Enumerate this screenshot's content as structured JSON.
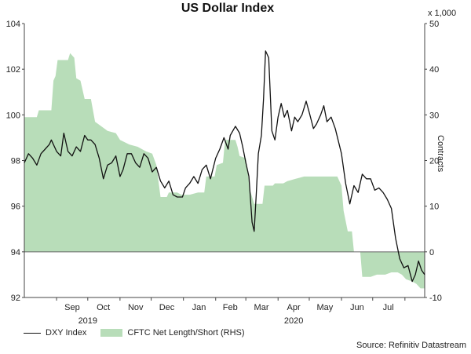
{
  "chart_data": {
    "type": "line",
    "title": "US Dollar Index",
    "left_axis": {
      "range": [
        92,
        104
      ],
      "ticks": [
        92,
        94,
        96,
        98,
        100,
        102,
        104
      ]
    },
    "right_axis": {
      "label": "Contracts",
      "unit": "x 1,000",
      "range": [
        -10,
        50
      ],
      "ticks": [
        -10,
        0,
        10,
        20,
        30,
        40,
        50
      ]
    },
    "x_ticks": [
      "Sep",
      "Oct",
      "Nov",
      "Dec",
      "Jan",
      "Feb",
      "Mar",
      "Apr",
      "May",
      "Jun",
      "Jul"
    ],
    "year_labels": [
      "2019",
      "2020"
    ],
    "series": [
      {
        "name": "DXY Index",
        "kind": "line",
        "color": "#111111",
        "points": [
          [
            "2019-08-01",
            97.9
          ],
          [
            "2019-08-05",
            98.3
          ],
          [
            "2019-08-09",
            98.1
          ],
          [
            "2019-08-13",
            97.8
          ],
          [
            "2019-08-17",
            98.3
          ],
          [
            "2019-08-21",
            98.5
          ],
          [
            "2019-08-25",
            98.7
          ],
          [
            "2019-08-27",
            98.9
          ],
          [
            "2019-09-01",
            98.4
          ],
          [
            "2019-09-05",
            98.2
          ],
          [
            "2019-09-08",
            99.2
          ],
          [
            "2019-09-12",
            98.4
          ],
          [
            "2019-09-16",
            98.2
          ],
          [
            "2019-09-20",
            98.6
          ],
          [
            "2019-09-24",
            98.4
          ],
          [
            "2019-09-28",
            99.1
          ],
          [
            "2019-10-01",
            98.9
          ],
          [
            "2019-10-04",
            98.9
          ],
          [
            "2019-10-08",
            98.7
          ],
          [
            "2019-10-12",
            98.1
          ],
          [
            "2019-10-16",
            97.2
          ],
          [
            "2019-10-20",
            97.8
          ],
          [
            "2019-10-24",
            97.9
          ],
          [
            "2019-10-28",
            98.2
          ],
          [
            "2019-11-01",
            97.3
          ],
          [
            "2019-11-04",
            97.6
          ],
          [
            "2019-11-08",
            98.3
          ],
          [
            "2019-11-12",
            98.3
          ],
          [
            "2019-11-16",
            97.9
          ],
          [
            "2019-11-20",
            97.7
          ],
          [
            "2019-11-24",
            98.3
          ],
          [
            "2019-11-28",
            98.1
          ],
          [
            "2019-12-02",
            97.5
          ],
          [
            "2019-12-06",
            97.7
          ],
          [
            "2019-12-10",
            97.1
          ],
          [
            "2019-12-14",
            96.8
          ],
          [
            "2019-12-18",
            97.1
          ],
          [
            "2019-12-22",
            96.5
          ],
          [
            "2019-12-26",
            96.4
          ],
          [
            "2019-12-31",
            96.4
          ],
          [
            "2020-01-03",
            96.8
          ],
          [
            "2020-01-07",
            97.0
          ],
          [
            "2020-01-11",
            97.3
          ],
          [
            "2020-01-15",
            97.0
          ],
          [
            "2020-01-19",
            97.6
          ],
          [
            "2020-01-23",
            97.8
          ],
          [
            "2020-01-27",
            97.2
          ],
          [
            "2020-02-01",
            98.1
          ],
          [
            "2020-02-05",
            98.5
          ],
          [
            "2020-02-09",
            99.0
          ],
          [
            "2020-02-13",
            98.5
          ],
          [
            "2020-02-15",
            99.1
          ],
          [
            "2020-02-20",
            99.5
          ],
          [
            "2020-02-24",
            99.2
          ],
          [
            "2020-02-27",
            98.6
          ],
          [
            "2020-03-01",
            97.9
          ],
          [
            "2020-03-04",
            97.3
          ],
          [
            "2020-03-07",
            95.3
          ],
          [
            "2020-03-09",
            94.9
          ],
          [
            "2020-03-11",
            96.5
          ],
          [
            "2020-03-13",
            98.3
          ],
          [
            "2020-03-16",
            99.1
          ],
          [
            "2020-03-18",
            100.7
          ],
          [
            "2020-03-20",
            102.8
          ],
          [
            "2020-03-23",
            102.5
          ],
          [
            "2020-03-26",
            99.3
          ],
          [
            "2020-03-29",
            98.9
          ],
          [
            "2020-04-01",
            99.9
          ],
          [
            "2020-04-04",
            100.5
          ],
          [
            "2020-04-07",
            99.9
          ],
          [
            "2020-04-10",
            100.2
          ],
          [
            "2020-04-14",
            99.3
          ],
          [
            "2020-04-17",
            99.9
          ],
          [
            "2020-04-20",
            99.7
          ],
          [
            "2020-04-24",
            100.0
          ],
          [
            "2020-04-28",
            100.6
          ],
          [
            "2020-05-01",
            100.1
          ],
          [
            "2020-05-05",
            99.4
          ],
          [
            "2020-05-08",
            99.6
          ],
          [
            "2020-05-12",
            100.0
          ],
          [
            "2020-05-15",
            100.4
          ],
          [
            "2020-05-18",
            99.7
          ],
          [
            "2020-05-22",
            99.9
          ],
          [
            "2020-05-26",
            99.4
          ],
          [
            "2020-06-01",
            98.3
          ],
          [
            "2020-06-05",
            97.0
          ],
          [
            "2020-06-09",
            96.1
          ],
          [
            "2020-06-13",
            96.9
          ],
          [
            "2020-06-17",
            96.6
          ],
          [
            "2020-06-21",
            97.4
          ],
          [
            "2020-06-25",
            97.2
          ],
          [
            "2020-06-29",
            97.2
          ],
          [
            "2020-07-03",
            96.7
          ],
          [
            "2020-07-07",
            96.8
          ],
          [
            "2020-07-11",
            96.6
          ],
          [
            "2020-07-15",
            96.3
          ],
          [
            "2020-07-19",
            95.9
          ],
          [
            "2020-07-23",
            94.6
          ],
          [
            "2020-07-27",
            93.7
          ],
          [
            "2020-07-31",
            93.3
          ],
          [
            "2020-08-04",
            93.4
          ],
          [
            "2020-08-08",
            92.7
          ],
          [
            "2020-08-11",
            93.0
          ],
          [
            "2020-08-14",
            93.6
          ],
          [
            "2020-08-17",
            93.2
          ],
          [
            "2020-08-20",
            93.0
          ]
        ]
      },
      {
        "name": "CFTC Net Length/Short (RHS)",
        "kind": "area",
        "color": "#b8ddb9",
        "points": [
          [
            "2019-08-01",
            29.5
          ],
          [
            "2019-08-13",
            29.5
          ],
          [
            "2019-08-15",
            31.0
          ],
          [
            "2019-08-27",
            31.0
          ],
          [
            "2019-08-29",
            37.5
          ],
          [
            "2019-08-31",
            38.5
          ],
          [
            "2019-09-02",
            42.0
          ],
          [
            "2019-09-12",
            42.0
          ],
          [
            "2019-09-14",
            43.5
          ],
          [
            "2019-09-18",
            42.5
          ],
          [
            "2019-09-20",
            38.0
          ],
          [
            "2019-09-24",
            37.5
          ],
          [
            "2019-09-28",
            33.5
          ],
          [
            "2019-10-04",
            33.5
          ],
          [
            "2019-10-08",
            28.5
          ],
          [
            "2019-10-14",
            27.5
          ],
          [
            "2019-10-20",
            26.5
          ],
          [
            "2019-10-28",
            26.0
          ],
          [
            "2019-11-01",
            24.5
          ],
          [
            "2019-11-10",
            23.5
          ],
          [
            "2019-11-18",
            23.0
          ],
          [
            "2019-11-26",
            22.0
          ],
          [
            "2019-12-02",
            21.5
          ],
          [
            "2019-12-06",
            19.0
          ],
          [
            "2019-12-10",
            12.0
          ],
          [
            "2019-12-16",
            12.0
          ],
          [
            "2019-12-18",
            13.0
          ],
          [
            "2019-12-26",
            13.0
          ],
          [
            "2019-12-30",
            12.5
          ],
          [
            "2020-01-07",
            12.5
          ],
          [
            "2020-01-15",
            13.0
          ],
          [
            "2020-01-21",
            13.0
          ],
          [
            "2020-01-23",
            16.5
          ],
          [
            "2020-01-31",
            16.5
          ],
          [
            "2020-02-02",
            19.0
          ],
          [
            "2020-02-08",
            19.5
          ],
          [
            "2020-02-10",
            24.5
          ],
          [
            "2020-02-20",
            24.5
          ],
          [
            "2020-02-22",
            23.0
          ],
          [
            "2020-02-24",
            21.0
          ],
          [
            "2020-03-01",
            20.5
          ],
          [
            "2020-03-05",
            13.5
          ],
          [
            "2020-03-09",
            10.5
          ],
          [
            "2020-03-17",
            10.5
          ],
          [
            "2020-03-19",
            14.5
          ],
          [
            "2020-03-27",
            14.5
          ],
          [
            "2020-03-29",
            15.0
          ],
          [
            "2020-04-06",
            15.0
          ],
          [
            "2020-04-10",
            15.5
          ],
          [
            "2020-04-18",
            16.0
          ],
          [
            "2020-04-26",
            16.5
          ],
          [
            "2020-05-04",
            16.5
          ],
          [
            "2020-05-12",
            16.5
          ],
          [
            "2020-05-20",
            16.5
          ],
          [
            "2020-05-28",
            16.5
          ],
          [
            "2020-06-01",
            14.5
          ],
          [
            "2020-06-03",
            9.0
          ],
          [
            "2020-06-07",
            4.5
          ],
          [
            "2020-06-11",
            4.5
          ],
          [
            "2020-06-13",
            0.0
          ],
          [
            "2020-06-19",
            0.0
          ],
          [
            "2020-06-21",
            -5.5
          ],
          [
            "2020-06-29",
            -5.5
          ],
          [
            "2020-07-05",
            -5.0
          ],
          [
            "2020-07-13",
            -5.0
          ],
          [
            "2020-07-19",
            -4.5
          ],
          [
            "2020-07-25",
            -4.5
          ],
          [
            "2020-07-29",
            -5.0
          ],
          [
            "2020-08-02",
            -6.0
          ],
          [
            "2020-08-08",
            -6.5
          ],
          [
            "2020-08-12",
            -7.0
          ],
          [
            "2020-08-16",
            -8.0
          ],
          [
            "2020-08-20",
            -8.0
          ]
        ]
      }
    ]
  },
  "legend": {
    "line_label": "DXY Index",
    "area_label": "CFTC Net Length/Short (RHS)"
  },
  "source": "Source: Refinitiv Datastream",
  "colors": {
    "line": "#111111",
    "area": "#b8ddb9",
    "axis": "#444444",
    "ref_line": "#666666"
  }
}
